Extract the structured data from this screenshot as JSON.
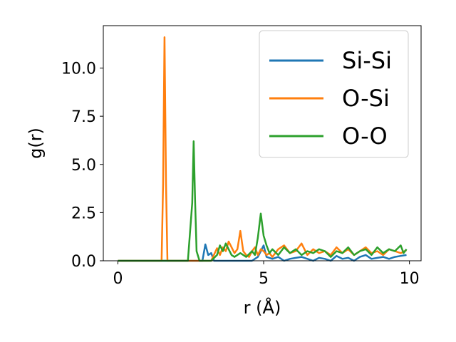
{
  "chart_data": {
    "type": "line",
    "xlabel": "r (Å)",
    "ylabel": "g(r)",
    "xlim": [
      -0.5,
      10.4
    ],
    "ylim": [
      0,
      12.2
    ],
    "xticks": [
      0,
      5,
      10
    ],
    "xtick_labels": [
      "0",
      "5",
      "10"
    ],
    "yticks": [
      0,
      2.5,
      5,
      7.5,
      10
    ],
    "ytick_labels": [
      "0.0",
      "2.5",
      "5.0",
      "7.5",
      "10.0"
    ],
    "grid": false,
    "legend_position": "top-right",
    "series": [
      {
        "name": "Si-Si",
        "color": "#1f77b4",
        "x": [
          0,
          0.5,
          1.0,
          1.5,
          2.0,
          2.5,
          2.9,
          3.0,
          3.1,
          3.2,
          3.3,
          3.4,
          3.6,
          3.8,
          4.0,
          4.2,
          4.4,
          4.6,
          4.8,
          4.9,
          5.0,
          5.1,
          5.3,
          5.5,
          5.7,
          5.9,
          6.1,
          6.3,
          6.5,
          6.7,
          6.9,
          7.1,
          7.3,
          7.5,
          7.7,
          7.9,
          8.1,
          8.3,
          8.5,
          8.7,
          8.9,
          9.1,
          9.3,
          9.5,
          9.7,
          9.9
        ],
        "y": [
          0,
          0,
          0,
          0,
          0,
          0,
          0,
          0.85,
          0.3,
          0.4,
          0,
          0,
          0,
          0,
          0,
          0,
          0,
          0,
          0.2,
          0.5,
          0.8,
          0.2,
          0.1,
          0.2,
          0,
          0.1,
          0.15,
          0.2,
          0.1,
          0,
          0.15,
          0.1,
          0,
          0.25,
          0.1,
          0.15,
          0,
          0.2,
          0.3,
          0.1,
          0.15,
          0.2,
          0.1,
          0.2,
          0.25,
          0.3
        ]
      },
      {
        "name": "O-Si",
        "color": "#ff7f0e",
        "x": [
          0,
          0.5,
          1.0,
          1.5,
          1.55,
          1.6,
          1.65,
          1.7,
          2.0,
          2.5,
          3.0,
          3.2,
          3.4,
          3.5,
          3.6,
          3.7,
          3.8,
          3.9,
          4.0,
          4.1,
          4.2,
          4.3,
          4.4,
          4.5,
          4.6,
          4.7,
          4.8,
          4.9,
          5.0,
          5.1,
          5.2,
          5.3,
          5.5,
          5.7,
          5.9,
          6.1,
          6.3,
          6.5,
          6.7,
          6.9,
          7.1,
          7.3,
          7.5,
          7.7,
          7.9,
          8.1,
          8.3,
          8.5,
          8.7,
          8.9,
          9.1,
          9.3,
          9.5,
          9.7,
          9.9
        ],
        "y": [
          0,
          0,
          0,
          0,
          4,
          11.6,
          4,
          0,
          0,
          0,
          0,
          0,
          0.65,
          0.3,
          0.7,
          0.5,
          1.0,
          0.7,
          0.4,
          0.6,
          1.55,
          0.5,
          0.3,
          0.2,
          0.5,
          0.7,
          0.3,
          0.6,
          0.5,
          0.3,
          0.4,
          0.2,
          0.6,
          0.8,
          0.4,
          0.5,
          0.9,
          0.3,
          0.6,
          0.4,
          0.5,
          0.3,
          0.7,
          0.4,
          0.6,
          0.3,
          0.5,
          0.7,
          0.4,
          0.5,
          0.3,
          0.6,
          0.5,
          0.4,
          0.55
        ]
      },
      {
        "name": "O-O",
        "color": "#2ca02c",
        "x": [
          0,
          0.5,
          1.0,
          1.5,
          2.0,
          2.4,
          2.55,
          2.6,
          2.65,
          2.7,
          2.8,
          3.0,
          3.2,
          3.4,
          3.5,
          3.6,
          3.7,
          3.8,
          3.9,
          4.0,
          4.2,
          4.4,
          4.6,
          4.7,
          4.8,
          4.9,
          5.0,
          5.1,
          5.2,
          5.3,
          5.5,
          5.7,
          5.9,
          6.1,
          6.3,
          6.5,
          6.7,
          6.9,
          7.1,
          7.3,
          7.5,
          7.7,
          7.9,
          8.1,
          8.3,
          8.5,
          8.7,
          8.9,
          9.1,
          9.3,
          9.5,
          9.7,
          9.8,
          9.9
        ],
        "y": [
          0,
          0,
          0,
          0,
          0,
          0,
          3,
          6.2,
          3,
          0.5,
          0,
          0,
          0,
          0.3,
          0.8,
          0.5,
          0.9,
          0.6,
          0.3,
          0.2,
          0.4,
          0.2,
          0.5,
          0.3,
          1.2,
          2.45,
          1.3,
          0.8,
          0.4,
          0.6,
          0.3,
          0.7,
          0.4,
          0.6,
          0.3,
          0.5,
          0.4,
          0.6,
          0.5,
          0.2,
          0.5,
          0.4,
          0.7,
          0.3,
          0.5,
          0.6,
          0.3,
          0.7,
          0.4,
          0.6,
          0.5,
          0.8,
          0.4,
          0.6
        ]
      }
    ]
  }
}
